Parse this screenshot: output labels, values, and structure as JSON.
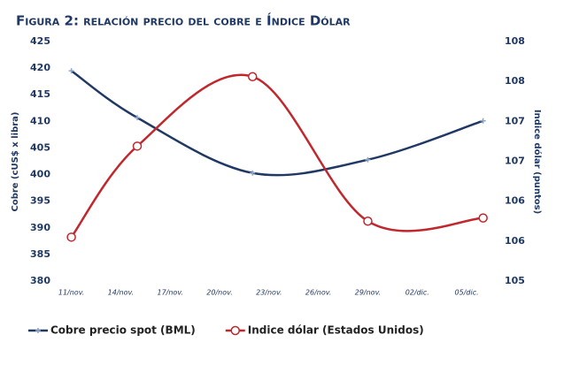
{
  "chart_data": {
    "type": "line",
    "title": "Figura 2: relación precio del cobre e Índice Dólar",
    "y_label": "Cobre (cUS$ x libra)",
    "y2_label": "Indice dólar (puntos)",
    "x": [
      0,
      4,
      11,
      18,
      25
    ],
    "xlim": [
      -1,
      25.5
    ],
    "xticks": [
      {
        "value": 0,
        "label": "11/nov."
      },
      {
        "value": 3,
        "label": "14/nov."
      },
      {
        "value": 6,
        "label": "17/nov."
      },
      {
        "value": 9,
        "label": "20/nov."
      },
      {
        "value": 12,
        "label": "23/nov."
      },
      {
        "value": 15,
        "label": "26/nov."
      },
      {
        "value": 18,
        "label": "29/nov."
      },
      {
        "value": 21,
        "label": "02/dic."
      },
      {
        "value": 24,
        "label": "05/dic."
      }
    ],
    "ylim": [
      380,
      425
    ],
    "yticks": [
      380,
      385,
      390,
      395,
      400,
      405,
      410,
      415,
      420,
      425
    ],
    "y2lim": [
      105,
      108
    ],
    "y2ticks": [
      105,
      {
        "value": 105.5,
        "label": "106"
      },
      106,
      {
        "value": 106.5,
        "label": "107"
      },
      107,
      {
        "value": 107.5,
        "label": "108"
      },
      108
    ],
    "series": [
      {
        "name": "Cobre precio spot (BML)",
        "color": "#1f3864",
        "marker": "cross",
        "values": [
          419.5,
          410.7,
          400.3,
          402.8,
          410.1
        ]
      },
      {
        "name": "Indice dólar (Estados Unidos)",
        "color": "#c0282d",
        "marker": "circle",
        "axis": "y2",
        "values": [
          105.55,
          106.69,
          107.56,
          105.75,
          105.79
        ]
      }
    ],
    "legend": "bottom"
  }
}
